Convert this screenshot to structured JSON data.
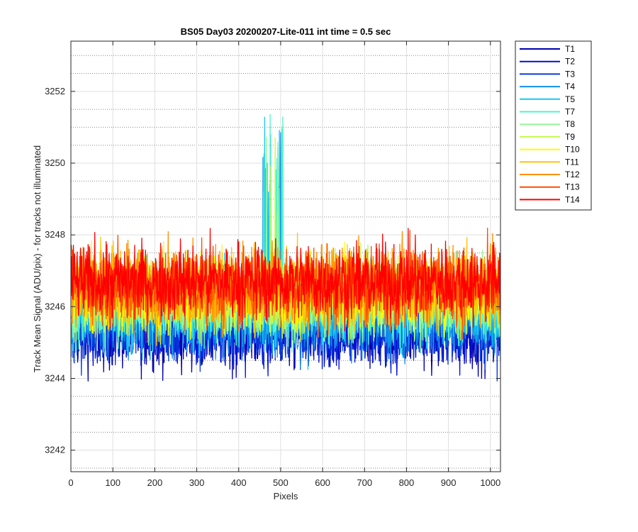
{
  "chart_data": {
    "type": "line",
    "title": "BS05 Day03 20200207-Lite-011 int time = 0.5 sec",
    "xlabel": "Pixels",
    "ylabel": "Track Mean Signal (ADU/pix) - for tracks not illuminated",
    "xlim": [
      0,
      1024
    ],
    "ylim": [
      3241.4,
      3253.4
    ],
    "xticks": [
      0,
      100,
      200,
      300,
      400,
      500,
      600,
      700,
      800,
      900,
      1000
    ],
    "yticks": [
      3242,
      3244,
      3246,
      3248,
      3250,
      3252
    ],
    "grid": true,
    "minor_grid": true,
    "legend_position": "outside-top-right",
    "note": "Each series is a noisy trace over 1024 pixels; values shown are approximate mean and spread read from the plot.",
    "series": [
      {
        "name": "T1",
        "color": "#0000ae",
        "mean": 3245.3,
        "spread": 1.0
      },
      {
        "name": "T2",
        "color": "#0011d6",
        "mean": 3245.4,
        "spread": 1.0
      },
      {
        "name": "T3",
        "color": "#0a3bdc",
        "mean": 3245.5,
        "spread": 1.0
      },
      {
        "name": "T4",
        "color": "#1190ea",
        "mean": 3245.7,
        "spread": 1.0
      },
      {
        "name": "T5",
        "color": "#15c8f2",
        "mean": 3245.9,
        "spread": 1.0
      },
      {
        "name": "T7",
        "color": "#4ef5c8",
        "mean": 3246.1,
        "spread": 1.0
      },
      {
        "name": "T8",
        "color": "#98f798",
        "mean": 3246.2,
        "spread": 1.0
      },
      {
        "name": "T9",
        "color": "#c8f84a",
        "mean": 3246.3,
        "spread": 1.0
      },
      {
        "name": "T10",
        "color": "#fffb00",
        "mean": 3246.4,
        "spread": 1.0
      },
      {
        "name": "T11",
        "color": "#ffc600",
        "mean": 3246.5,
        "spread": 1.0
      },
      {
        "name": "T12",
        "color": "#ff9100",
        "mean": 3246.6,
        "spread": 1.0
      },
      {
        "name": "T13",
        "color": "#ff4d00",
        "mean": 3246.6,
        "spread": 1.0
      },
      {
        "name": "T14",
        "color": "#ff0000",
        "mean": 3246.7,
        "spread": 1.0
      }
    ]
  }
}
